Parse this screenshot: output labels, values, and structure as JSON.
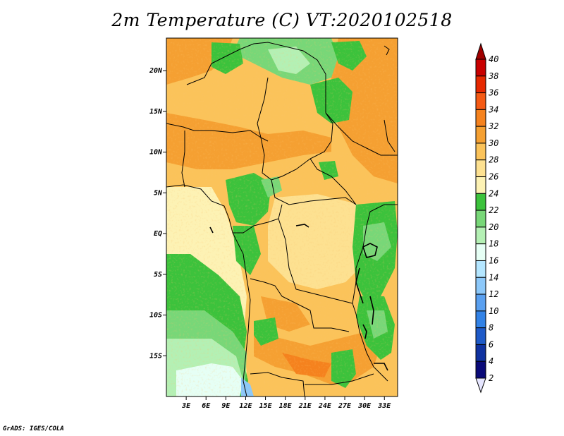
{
  "title": "2m Temperature (C) VT:2020102518",
  "credit": "GrADS: IGES/COLA",
  "map": {
    "lon_range": [
      0,
      35
    ],
    "lat_range": [
      -20,
      24
    ],
    "lon_ticks": [
      "3E",
      "6E",
      "9E",
      "12E",
      "15E",
      "18E",
      "21E",
      "24E",
      "27E",
      "30E",
      "33E"
    ],
    "lat_ticks": [
      "20N",
      "15N",
      "10N",
      "5N",
      "EQ",
      "5S",
      "10S",
      "15S"
    ]
  },
  "colorbar": {
    "labels": [
      "40",
      "38",
      "36",
      "34",
      "32",
      "30",
      "28",
      "26",
      "24",
      "22",
      "20",
      "18",
      "16",
      "14",
      "12",
      "10",
      "8",
      "6",
      "4",
      "2"
    ],
    "colors": [
      "#a00000",
      "#c80000",
      "#e62800",
      "#f55a14",
      "#f5821e",
      "#f5a032",
      "#fbc35a",
      "#fde191",
      "#fdf2b4",
      "#3cc23c",
      "#78d778",
      "#b4f0b4",
      "#e6fff5",
      "#b4e6ff",
      "#8cc8fa",
      "#5aa0f0",
      "#3282e6",
      "#1e5ac8",
      "#0f32a0",
      "#0a0a78"
    ],
    "top_triangle_color": "#a00000",
    "bottom_triangle_color": "#e6e6ff"
  }
}
